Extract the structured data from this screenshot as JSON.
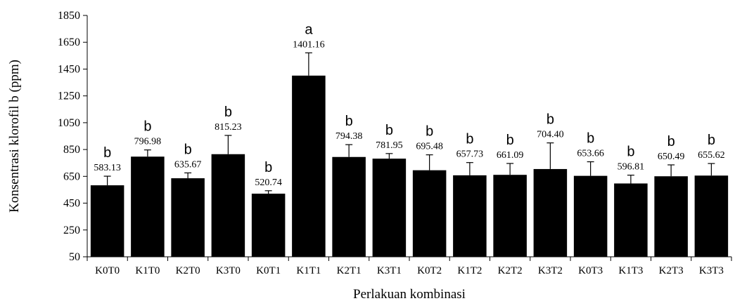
{
  "chart_data": {
    "type": "bar",
    "xlabel": "Perlakuan kombinasi",
    "ylabel": "Konsentrasi klorofil b (ppm)",
    "ylim": [
      50,
      1850
    ],
    "yticks": [
      50,
      250,
      450,
      650,
      850,
      1050,
      1250,
      1450,
      1650,
      1850
    ],
    "categories": [
      "K0T0",
      "K1T0",
      "K2T0",
      "K3T0",
      "K0T1",
      "K1T1",
      "K2T1",
      "K3T1",
      "K0T2",
      "K1T2",
      "K2T2",
      "K3T2",
      "K0T3",
      "K1T3",
      "K2T3",
      "K3T3"
    ],
    "values": [
      583.13,
      796.98,
      635.67,
      815.23,
      520.74,
      1401.16,
      794.38,
      781.95,
      695.48,
      657.73,
      661.09,
      704.4,
      653.66,
      596.81,
      650.49,
      655.62
    ],
    "value_labels": [
      "583.13",
      "796.98",
      "635.67",
      "815.23",
      "520.74",
      "1401.16",
      "794.38",
      "781.95",
      "695.48",
      "657.73",
      "661.09",
      "704.40",
      "653.66",
      "596.81",
      "650.49",
      "655.62"
    ],
    "errors": [
      68,
      50,
      40,
      140,
      22,
      170,
      92,
      38,
      115,
      95,
      85,
      195,
      105,
      62,
      85,
      90
    ],
    "significance": [
      "b",
      "b",
      "b",
      "b",
      "b",
      "a",
      "b",
      "b",
      "b",
      "b",
      "b",
      "b",
      "b",
      "b",
      "b",
      "b"
    ],
    "bar_color": "#000000",
    "grid": false,
    "legend": "none"
  }
}
